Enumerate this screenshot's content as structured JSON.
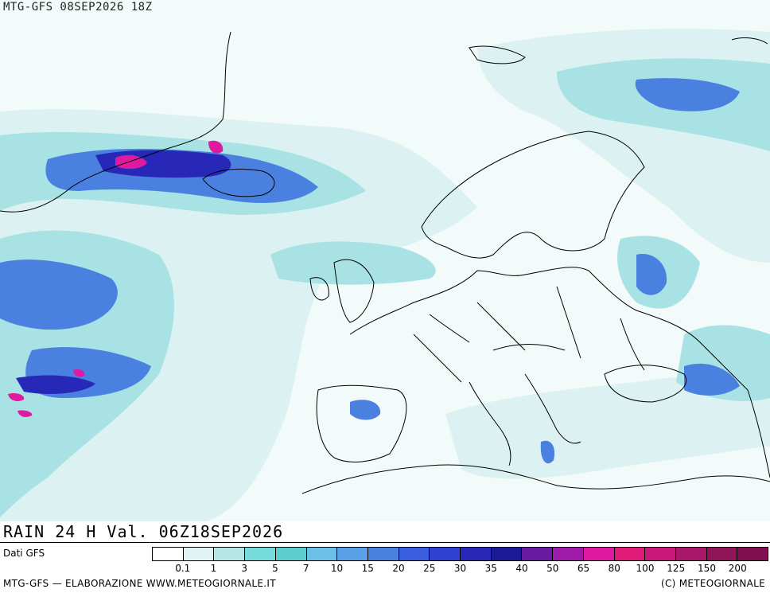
{
  "header": {
    "run_title": "MTG-GFS 08SEP2026 18Z"
  },
  "map": {
    "variable": "RAIN 24 H",
    "valid_text": "RAIN 24 H Val. 06Z18SEP2026"
  },
  "source": {
    "label": "Dati GFS"
  },
  "legend": {
    "thresholds": [
      "0.1",
      "1",
      "3",
      "5",
      "7",
      "10",
      "15",
      "20",
      "25",
      "30",
      "35",
      "40",
      "50",
      "65",
      "80",
      "100",
      "125",
      "150",
      "200"
    ],
    "colors": [
      "#ffffff",
      "#e0f4f4",
      "#b4e6e6",
      "#78dcdc",
      "#5ccccc",
      "#6cc0e8",
      "#5aa0e6",
      "#4a80e0",
      "#3a5ee0",
      "#3040d0",
      "#2828b8",
      "#1a1a96",
      "#6a1aa0",
      "#a01aa8",
      "#e01aa0",
      "#e01a78",
      "#c8187a",
      "#a8186a",
      "#901458",
      "#801050"
    ]
  },
  "footer": {
    "left": "MTG-GFS — ELABORAZIONE WWW.METEOGIORNALE.IT",
    "right": "(C) METEOGIORNALE"
  }
}
